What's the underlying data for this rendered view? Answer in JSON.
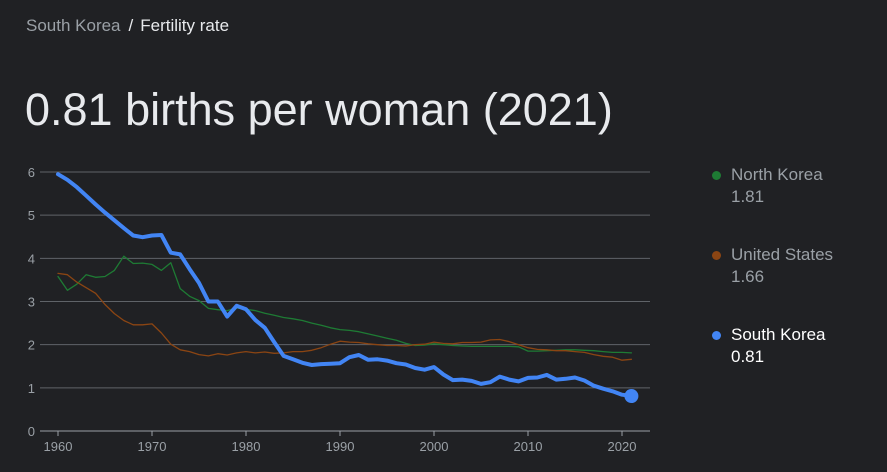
{
  "breadcrumb": {
    "parent": "South Korea",
    "separator": "/",
    "current": "Fertility rate"
  },
  "headline": "0.81 births per woman (2021)",
  "legend": [
    {
      "name": "North Korea",
      "value": "1.81",
      "color": "#1e7b34"
    },
    {
      "name": "United States",
      "value": "1.66",
      "color": "#8b4513"
    },
    {
      "name": "South Korea",
      "value": "0.81",
      "color": "#4285f4"
    }
  ],
  "chart_data": {
    "type": "line",
    "title": "",
    "xlabel": "",
    "ylabel": "",
    "xlim": [
      1960,
      2021
    ],
    "ylim": [
      0,
      6
    ],
    "x_ticks": [
      1960,
      1970,
      1980,
      1990,
      2000,
      2010,
      2020
    ],
    "y_ticks": [
      0,
      1,
      2,
      3,
      4,
      5,
      6
    ],
    "grid": true,
    "legend_position": "right",
    "x": [
      1960,
      1961,
      1962,
      1963,
      1964,
      1965,
      1966,
      1967,
      1968,
      1969,
      1970,
      1971,
      1972,
      1973,
      1974,
      1975,
      1976,
      1977,
      1978,
      1979,
      1980,
      1981,
      1982,
      1983,
      1984,
      1985,
      1986,
      1987,
      1988,
      1989,
      1990,
      1991,
      1992,
      1993,
      1994,
      1995,
      1996,
      1997,
      1998,
      1999,
      2000,
      2001,
      2002,
      2003,
      2004,
      2005,
      2006,
      2007,
      2008,
      2009,
      2010,
      2011,
      2012,
      2013,
      2014,
      2015,
      2016,
      2017,
      2018,
      2019,
      2020,
      2021
    ],
    "series": [
      {
        "name": "North Korea",
        "color": "#1e7b34",
        "values": [
          3.58,
          3.26,
          3.4,
          3.62,
          3.56,
          3.58,
          3.72,
          4.05,
          3.88,
          3.89,
          3.86,
          3.72,
          3.9,
          3.3,
          3.12,
          3.02,
          2.84,
          2.81,
          2.79,
          2.85,
          2.82,
          2.79,
          2.73,
          2.68,
          2.63,
          2.6,
          2.56,
          2.5,
          2.45,
          2.39,
          2.35,
          2.33,
          2.3,
          2.25,
          2.2,
          2.15,
          2.1,
          2.03,
          1.98,
          1.99,
          2.02,
          2.0,
          1.98,
          1.97,
          1.96,
          1.96,
          1.96,
          1.96,
          1.96,
          1.95,
          1.85,
          1.85,
          1.86,
          1.87,
          1.88,
          1.88,
          1.87,
          1.86,
          1.84,
          1.82,
          1.82,
          1.81
        ]
      },
      {
        "name": "United States",
        "color": "#8b4513",
        "values": [
          3.65,
          3.62,
          3.45,
          3.32,
          3.19,
          2.93,
          2.72,
          2.56,
          2.46,
          2.46,
          2.48,
          2.27,
          2.01,
          1.88,
          1.84,
          1.77,
          1.74,
          1.79,
          1.76,
          1.81,
          1.84,
          1.81,
          1.83,
          1.8,
          1.81,
          1.84,
          1.84,
          1.87,
          1.93,
          2.01,
          2.08,
          2.06,
          2.05,
          2.02,
          2.0,
          1.98,
          1.98,
          1.97,
          2.0,
          2.01,
          2.06,
          2.03,
          2.02,
          2.05,
          2.05,
          2.06,
          2.11,
          2.12,
          2.07,
          2.0,
          1.93,
          1.89,
          1.88,
          1.86,
          1.86,
          1.84,
          1.82,
          1.77,
          1.73,
          1.71,
          1.64,
          1.66
        ]
      },
      {
        "name": "South Korea",
        "color": "#4285f4",
        "values": [
          5.95,
          5.82,
          5.65,
          5.45,
          5.25,
          5.06,
          4.88,
          4.7,
          4.53,
          4.49,
          4.53,
          4.54,
          4.13,
          4.09,
          3.75,
          3.43,
          3.0,
          3.0,
          2.65,
          2.9,
          2.82,
          2.57,
          2.39,
          2.06,
          1.74,
          1.66,
          1.58,
          1.53,
          1.55,
          1.56,
          1.57,
          1.71,
          1.76,
          1.65,
          1.66,
          1.63,
          1.57,
          1.54,
          1.46,
          1.42,
          1.48,
          1.31,
          1.18,
          1.19,
          1.16,
          1.09,
          1.13,
          1.26,
          1.19,
          1.15,
          1.23,
          1.24,
          1.3,
          1.19,
          1.21,
          1.24,
          1.17,
          1.05,
          0.98,
          0.92,
          0.84,
          0.81
        ]
      }
    ]
  }
}
